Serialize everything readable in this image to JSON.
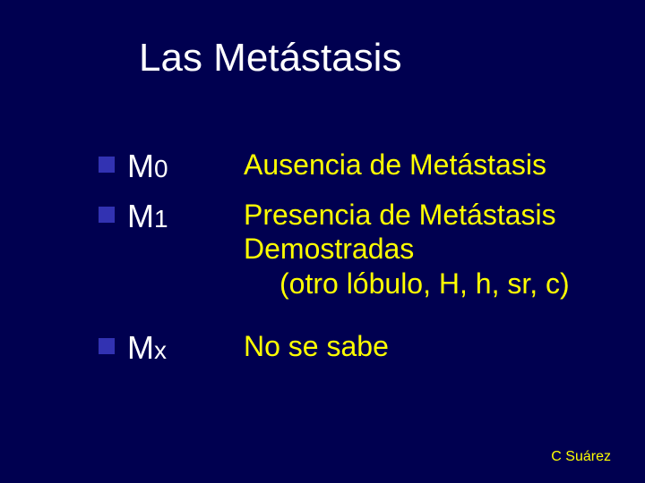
{
  "background_color": "#000050",
  "title": {
    "text": "Las Metástasis",
    "color": "#ffffff",
    "fontsize": 44
  },
  "bullet": {
    "color": "#3232b2",
    "size": 18
  },
  "label_style": {
    "color": "#ffffff",
    "main_fontsize": 36,
    "sub_fontsize": 28
  },
  "desc_style": {
    "color": "#ffff00",
    "fontsize": 32
  },
  "items": [
    {
      "label_main": "M",
      "label_sub": "0",
      "desc_lines": [
        "Ausencia de Metástasis"
      ]
    },
    {
      "label_main": "M",
      "label_sub": "1",
      "desc_lines": [
        "Presencia de Metástasis",
        "Demostradas"
      ],
      "desc_sub": "(otro lóbulo, H, h, sr, c)"
    },
    {
      "label_main": "M",
      "label_sub": "x",
      "desc_lines": [
        "No se sabe"
      ]
    }
  ],
  "footer": {
    "text": "C Suárez",
    "color": "#ffff00",
    "fontsize": 16
  }
}
